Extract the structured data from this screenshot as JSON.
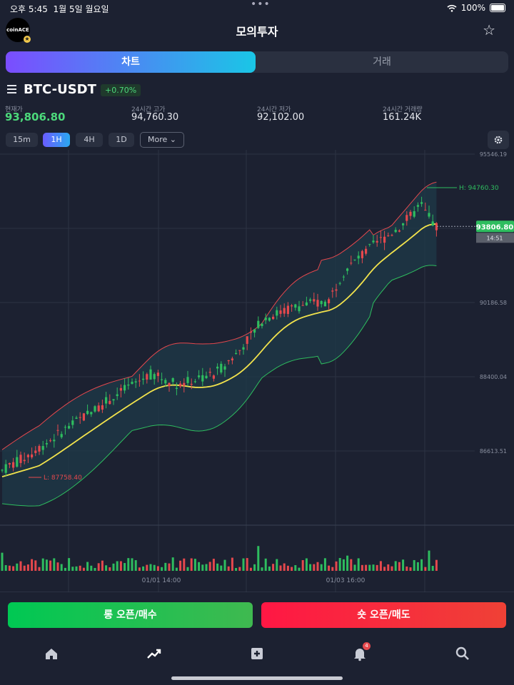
{
  "status": {
    "time": "오후 5:45",
    "date": "1월 5일 월요일",
    "battery": "100%"
  },
  "header": {
    "logo_text": "coinACE",
    "title": "모의투자"
  },
  "tabs": {
    "chart": "차트",
    "trade": "거래"
  },
  "market": {
    "pair": "BTC-USDT",
    "change": "+0.70%",
    "stats": [
      {
        "label": "현재가",
        "value": "93,806.80"
      },
      {
        "label": "24시간 고가",
        "value": "94,760.30"
      },
      {
        "label": "24시간 저가",
        "value": "92,102.00"
      },
      {
        "label": "24시간 거래량",
        "value": "161.24K"
      }
    ]
  },
  "timeframes": [
    {
      "label": "15m",
      "active": false
    },
    {
      "label": "1H",
      "active": true
    },
    {
      "label": "4H",
      "active": false
    },
    {
      "label": "1D",
      "active": false
    }
  ],
  "more_label": "More",
  "chart_data": {
    "type": "candlestick",
    "y_axis_ticks": [
      "95546.19",
      "91973.12",
      "90186.58",
      "88400.04",
      "86613.51"
    ],
    "ylim": [
      86613.51,
      95546.19
    ],
    "x_axis_ticks": [
      "01/01 14:00",
      "01/03 16:00"
    ],
    "current_price": "93806.80",
    "countdown": "14:51",
    "high_label": "H: 94760.30",
    "low_label": "L: 87758.40",
    "indicators": [
      "Bollinger Bands",
      "Moving Average",
      "Volume"
    ],
    "colors": {
      "up": "#2ebd5f",
      "down": "#e5484d",
      "ma": "#f2e34c",
      "band_upper": "#e5484d",
      "band_lower": "#2ebd5f",
      "band_fill": "#1e3a48"
    }
  },
  "actions": {
    "long": "롱 오픈/매수",
    "short": "숏 오픈/매도"
  },
  "nav": {
    "items": [
      "home-icon",
      "trend-icon",
      "plus-square-icon",
      "bell-icon",
      "search-icon"
    ],
    "notification_count": "4"
  }
}
